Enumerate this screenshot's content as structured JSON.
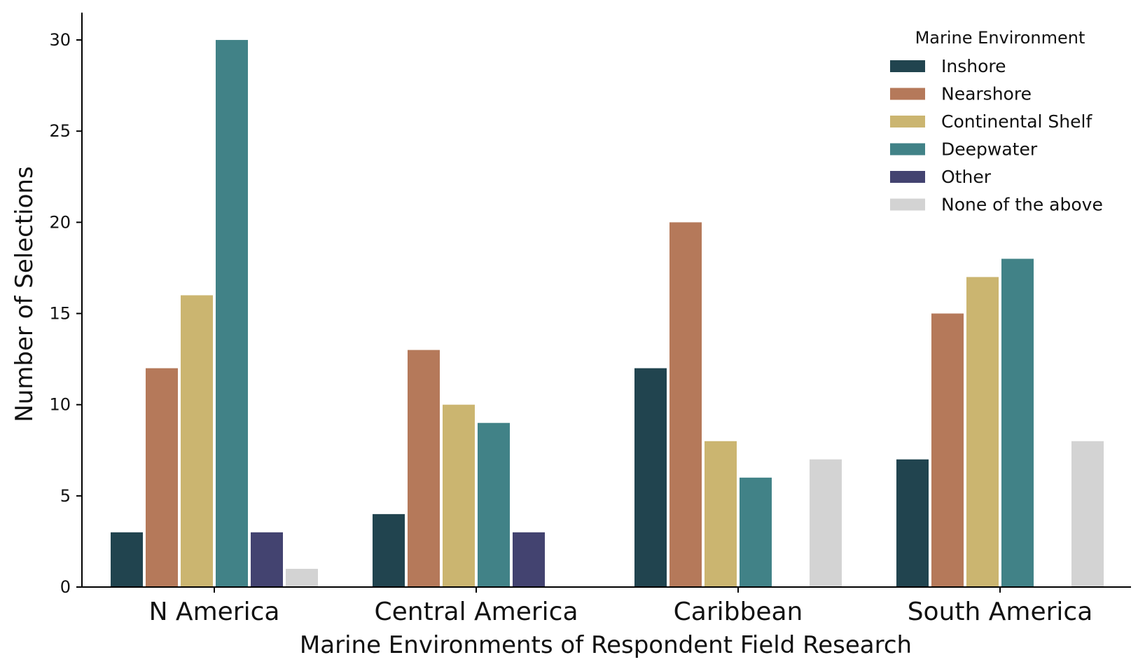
{
  "chart_data": {
    "type": "bar",
    "title": "",
    "xlabel": "Marine Environments of Respondent Field Research",
    "ylabel": "Number of Selections",
    "categories": [
      "N America",
      "Central America",
      "Caribbean",
      "South America"
    ],
    "ylim": [
      0,
      31.5
    ],
    "yticks": [
      0,
      5,
      10,
      15,
      20,
      25,
      30
    ],
    "grid": false,
    "legend": {
      "title": "Marine Environment",
      "placement": "top-right"
    },
    "series": [
      {
        "name": "Inshore",
        "color": "#21444f",
        "values": [
          3,
          4,
          12,
          7
        ]
      },
      {
        "name": "Nearshore",
        "color": "#b5795a",
        "values": [
          12,
          13,
          20,
          15
        ]
      },
      {
        "name": "Continental Shelf",
        "color": "#cbb570",
        "values": [
          16,
          10,
          8,
          17
        ]
      },
      {
        "name": "Deepwater",
        "color": "#418287",
        "values": [
          30,
          9,
          6,
          18
        ]
      },
      {
        "name": "Other",
        "color": "#434370",
        "values": [
          3,
          3,
          0,
          0
        ]
      },
      {
        "name": "None of the above",
        "color": "#d3d3d3",
        "values": [
          1,
          0,
          7,
          8
        ]
      }
    ]
  }
}
